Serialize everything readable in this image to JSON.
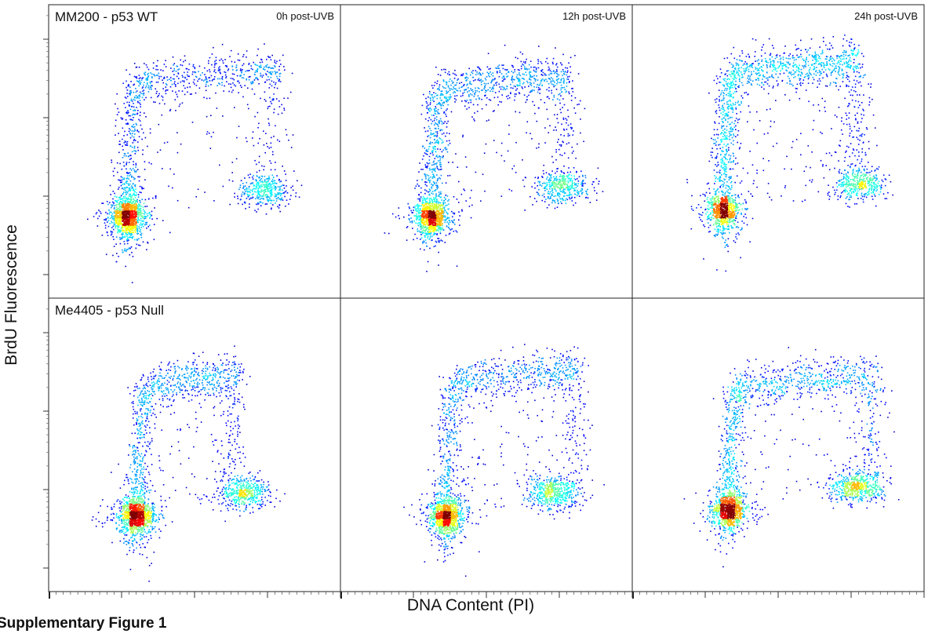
{
  "figure": {
    "ylabel": "BrdU Fluorescence",
    "xlabel": "DNA Content (PI)",
    "caption": "Supplementary Figure 1"
  },
  "chart_data": {
    "type": "scatter",
    "style": "flow cytometry density dot plots, jet colormap (blue = low density, red = high density)",
    "grid": false,
    "legend": "none",
    "xlabel": "DNA Content (PI)",
    "ylabel": "BrdU Fluorescence",
    "rows": [
      "MM200 - p53 WT",
      "Me4405 - p53 Null"
    ],
    "columns": [
      "0h post-UVB",
      "12h post-UVB",
      "24h post-UVB"
    ],
    "panels": [
      {
        "row": 0,
        "col": 0,
        "row_label": "MM200 - p53 WT",
        "time_label": "0h post-UVB",
        "G1": {
          "x": 0.27,
          "y": 0.28,
          "weight": 0.5
        },
        "S": {
          "weight": 0.36,
          "top_x_end": 0.79,
          "top_y": 0.78
        },
        "G2": {
          "x": 0.74,
          "y": 0.37,
          "weight": 0.14
        }
      },
      {
        "row": 0,
        "col": 1,
        "row_label": "",
        "time_label": "12h post-UVB",
        "G1": {
          "x": 0.31,
          "y": 0.28,
          "weight": 0.42
        },
        "S": {
          "weight": 0.43,
          "top_x_end": 0.79,
          "top_y": 0.76
        },
        "G2": {
          "x": 0.76,
          "y": 0.38,
          "weight": 0.15
        }
      },
      {
        "row": 0,
        "col": 2,
        "row_label": "",
        "time_label": "24h post-UVB",
        "G1": {
          "x": 0.31,
          "y": 0.3,
          "weight": 0.33
        },
        "S": {
          "weight": 0.52,
          "top_x_end": 0.78,
          "top_y": 0.81
        },
        "G2": {
          "x": 0.78,
          "y": 0.39,
          "weight": 0.15
        }
      },
      {
        "row": 1,
        "col": 0,
        "row_label": "Me4405 - p53 Null",
        "time_label": "",
        "G1": {
          "x": 0.3,
          "y": 0.26,
          "weight": 0.46
        },
        "S": {
          "weight": 0.36,
          "top_x_end": 0.65,
          "top_y": 0.74
        },
        "G2": {
          "x": 0.67,
          "y": 0.34,
          "weight": 0.18
        }
      },
      {
        "row": 1,
        "col": 1,
        "row_label": "",
        "time_label": "",
        "G1": {
          "x": 0.36,
          "y": 0.26,
          "weight": 0.42
        },
        "S": {
          "weight": 0.38,
          "top_x_end": 0.82,
          "top_y": 0.76
        },
        "G2": {
          "x": 0.73,
          "y": 0.34,
          "weight": 0.2
        }
      },
      {
        "row": 1,
        "col": 2,
        "row_label": "",
        "time_label": "",
        "G1": {
          "x": 0.33,
          "y": 0.28,
          "weight": 0.4
        },
        "S": {
          "weight": 0.4,
          "top_x_end": 0.84,
          "top_y": 0.74
        },
        "G2": {
          "x": 0.77,
          "y": 0.36,
          "weight": 0.2
        }
      }
    ]
  }
}
